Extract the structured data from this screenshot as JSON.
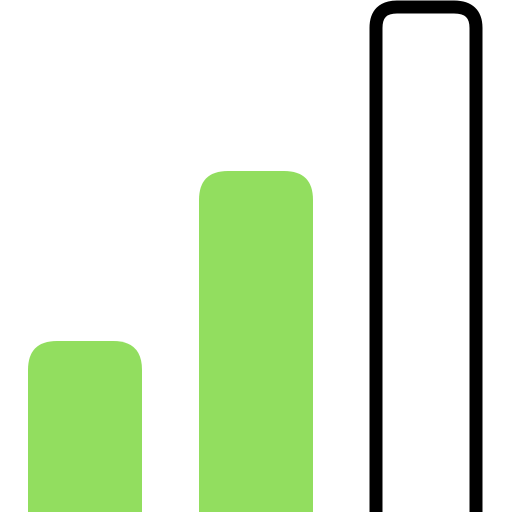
{
  "icon": {
    "name": "signal-strength-icon",
    "colors": {
      "background": "#ffffff",
      "active_bar": "#92DE5F",
      "inactive_outline": "#000000"
    },
    "signal": {
      "filled_bars": 2,
      "total_bars": 3
    }
  }
}
